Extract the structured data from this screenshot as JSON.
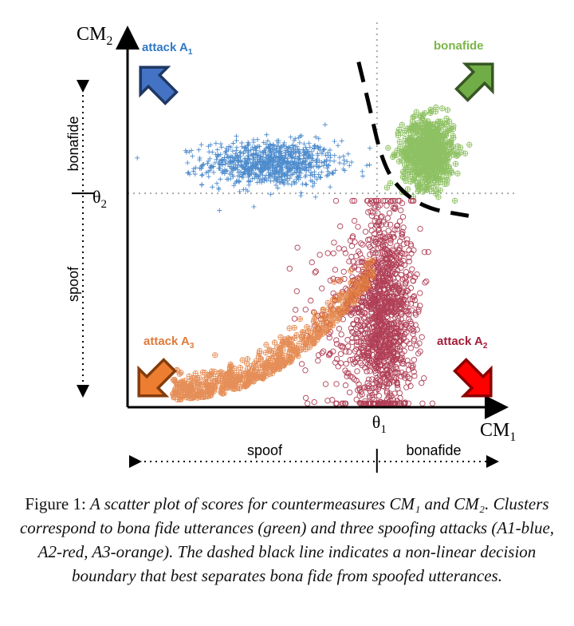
{
  "chart_data": {
    "type": "scatter",
    "title": "",
    "xlabel": "CM",
    "xlabel_sub": "1",
    "ylabel": "CM",
    "ylabel_sub": "2",
    "xlim": [
      0,
      1
    ],
    "ylim": [
      0,
      1
    ],
    "grid": false,
    "thresholds": {
      "x": {
        "label": "θ",
        "sub": "1",
        "value": 0.68
      },
      "y": {
        "label": "θ",
        "sub": "2",
        "value": 0.57
      }
    },
    "axis_regions": {
      "x": {
        "left": "spoof",
        "right": "bonafide"
      },
      "y": {
        "bottom": "spoof",
        "top": "bonafide"
      }
    },
    "series": [
      {
        "name": "attack A",
        "sub": "1",
        "color": "#2f78c4",
        "marker": "plus",
        "center": [
          0.39,
          0.65
        ],
        "spread": [
          0.09,
          0.03
        ],
        "count": 900
      },
      {
        "name": "bonafide",
        "sub": "",
        "color": "#7ab648",
        "marker": "circle-plus",
        "center": [
          0.82,
          0.68
        ],
        "spread": [
          0.035,
          0.045
        ],
        "count": 800
      },
      {
        "name": "attack A",
        "sub": "2",
        "color": "#a31e3a",
        "marker": "circle",
        "center": [
          0.7,
          0.25
        ],
        "spread": [
          0.04,
          0.14
        ],
        "count": 1400
      },
      {
        "name": "attack A",
        "sub": "3",
        "color": "#e07a3a",
        "marker": "circle-plus",
        "center": [
          0.45,
          0.08
        ],
        "spread": [
          0.18,
          0.06
        ],
        "count": 700
      }
    ],
    "decision_boundary": {
      "style": "dashed",
      "color": "#000000",
      "points": [
        [
          0.63,
          0.92
        ],
        [
          0.66,
          0.8
        ],
        [
          0.69,
          0.67
        ],
        [
          0.73,
          0.59
        ],
        [
          0.81,
          0.53
        ],
        [
          0.93,
          0.51
        ]
      ]
    },
    "corner_arrows": [
      {
        "corner": "top-left",
        "color": "#4472c4",
        "stroke": "#1f3864"
      },
      {
        "corner": "top-right",
        "color": "#70ad47",
        "stroke": "#375623"
      },
      {
        "corner": "bottom-left",
        "color": "#ed7d31",
        "stroke": "#843c0c"
      },
      {
        "corner": "bottom-right",
        "color": "#ff0000",
        "stroke": "#8b0000"
      }
    ]
  },
  "caption": {
    "lead": "Figure 1: ",
    "body": "A scatter plot of scores for countermeasures CM₁ and CM₂. Clusters correspond to bona fide utterances (green) and three spoofing attacks (A1-blue, A2-red, A3-orange). The dashed black line indicates a non-linear decision boundary that best separates bona fide from spoofed utterances."
  }
}
